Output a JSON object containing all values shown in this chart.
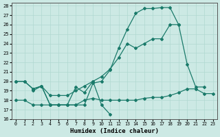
{
  "xlabel": "Humidex (Indice chaleur)",
  "ylabel": "",
  "bg_color": "#cce9e4",
  "grid_color": "#b0d8d0",
  "line_color": "#1a7a6a",
  "xlim": [
    -0.5,
    23.5
  ],
  "ylim": [
    16,
    28.3
  ],
  "xticks": [
    0,
    1,
    2,
    3,
    4,
    5,
    6,
    7,
    8,
    9,
    10,
    11,
    12,
    13,
    14,
    15,
    16,
    17,
    18,
    19,
    20,
    21,
    22,
    23
  ],
  "yticks": [
    16,
    17,
    18,
    19,
    20,
    21,
    22,
    23,
    24,
    25,
    26,
    27,
    28
  ],
  "line1_x": [
    0,
    1,
    2,
    3,
    4,
    5,
    6,
    7,
    8,
    9,
    10,
    11
  ],
  "line1_y": [
    20.0,
    20.0,
    19.2,
    19.5,
    17.5,
    17.5,
    17.5,
    19.4,
    18.8,
    20.0,
    17.5,
    16.5
  ],
  "line2_x": [
    0,
    1,
    2,
    3,
    4,
    5,
    6,
    7,
    8,
    9,
    10,
    11,
    12,
    13,
    14,
    15,
    16,
    17,
    18,
    19
  ],
  "line2_y": [
    20.0,
    20.0,
    19.2,
    19.5,
    17.5,
    17.5,
    17.5,
    17.5,
    17.5,
    19.8,
    20.0,
    21.2,
    23.5,
    25.5,
    27.2,
    27.7,
    27.7,
    27.8,
    27.8,
    26.0
  ],
  "line3_x": [
    2,
    3,
    4,
    5,
    6,
    7,
    8,
    9,
    10,
    11,
    12,
    13,
    14,
    15,
    16,
    17,
    18,
    19,
    20,
    21,
    22
  ],
  "line3_y": [
    19.0,
    19.5,
    18.5,
    18.5,
    18.5,
    19.0,
    19.5,
    20.0,
    20.5,
    21.3,
    22.5,
    24.0,
    23.5,
    24.0,
    24.5,
    24.5,
    26.0,
    26.0,
    21.8,
    19.4,
    19.4
  ],
  "line4_x": [
    0,
    1,
    2,
    3,
    4,
    5,
    6,
    7,
    8,
    9,
    10,
    11,
    12,
    13,
    14,
    15,
    16,
    17,
    18,
    19,
    20,
    21,
    22,
    23
  ],
  "line4_y": [
    18.0,
    18.0,
    17.5,
    17.5,
    17.5,
    17.5,
    17.5,
    17.5,
    18.0,
    18.2,
    18.0,
    18.0,
    18.0,
    18.0,
    18.0,
    18.2,
    18.3,
    18.3,
    18.5,
    18.8,
    19.2,
    19.2,
    18.7,
    18.7
  ]
}
